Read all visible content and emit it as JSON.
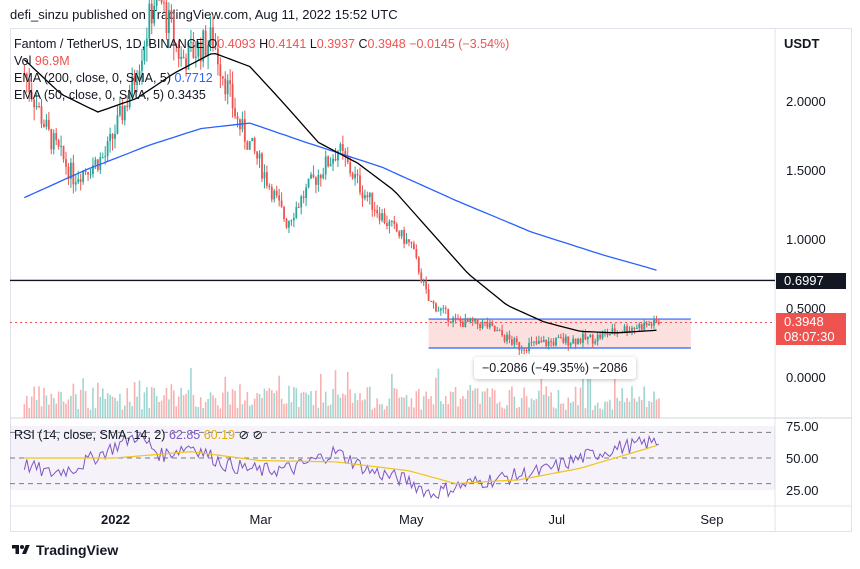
{
  "header": {
    "publisher": "defi_sinzu published on TradingView.com, Aug 11, 2022 15:52 UTC"
  },
  "legend": {
    "symbol": "Fantom / TetherUS, 1D, BINANCE",
    "o_label": "O",
    "o_value": "0.4093",
    "h_label": "H",
    "h_value": "0.4141",
    "l_label": "L",
    "l_value": "0.3937",
    "c_label": "C",
    "c_value": "0.3948",
    "change": "−0.0145 (−3.54%)",
    "vol_label": "Vol",
    "vol_value": "96.9M",
    "ema200_label": "EMA (200, close, 0, SMA, 5)",
    "ema200_value": "0.7712",
    "ema50_label": "EMA (50, close, 0, SMA, 5)",
    "ema50_value": "0.3435"
  },
  "price_axis": {
    "currency": "USDT",
    "ticks": [
      "2.0000",
      "1.5000",
      "1.0000",
      "0.5000",
      "0.0000"
    ],
    "level_tag": "0.6997",
    "price_tag": "0.3948",
    "countdown": "08:07:30"
  },
  "time_axis": {
    "ticks": [
      "2022",
      "Mar",
      "May",
      "Jul",
      "Sep"
    ]
  },
  "measure": {
    "label": "−0.2086 (−49.35%) −2086"
  },
  "rsi": {
    "label": "RSI (14, close, SMA, 14, 2)",
    "value": "62.85",
    "sma_value": "60.19",
    "ticks": [
      "75.00",
      "50.00",
      "25.00"
    ]
  },
  "footer": {
    "brand": "TradingView"
  },
  "colors": {
    "up": "#26a69a",
    "down": "#ef5350",
    "ema200": "#2962ff",
    "ema50": "#000000",
    "rsi": "#7e57c2",
    "rsi_sma": "#f0c419",
    "box_fill": "#fbd6d6",
    "box_border": "#2962ff"
  },
  "chart_data": {
    "type": "candlestick",
    "symbol": "FTM/USDT",
    "yrange": [
      -0.25,
      2.5
    ],
    "horizontal_level": 0.6997,
    "range_box": {
      "start": "2022-05-09",
      "end": "2022-08-11",
      "top": 0.42,
      "bottom": 0.21
    },
    "ema200_points": [
      {
        "date": "2021-11-25",
        "value": 1.3
      },
      {
        "date": "2021-12-20",
        "value": 1.5
      },
      {
        "date": "2022-01-15",
        "value": 1.68
      },
      {
        "date": "2022-02-05",
        "value": 1.8
      },
      {
        "date": "2022-02-25",
        "value": 1.84
      },
      {
        "date": "2022-03-20",
        "value": 1.7
      },
      {
        "date": "2022-04-20",
        "value": 1.52
      },
      {
        "date": "2022-05-20",
        "value": 1.28
      },
      {
        "date": "2022-06-20",
        "value": 1.05
      },
      {
        "date": "2022-07-20",
        "value": 0.88
      },
      {
        "date": "2022-08-11",
        "value": 0.77
      }
    ],
    "ema50_points": [
      {
        "date": "2021-11-25",
        "value": 2.3
      },
      {
        "date": "2021-12-10",
        "value": 2.05
      },
      {
        "date": "2021-12-25",
        "value": 1.92
      },
      {
        "date": "2022-01-10",
        "value": 2.02
      },
      {
        "date": "2022-01-25",
        "value": 2.2
      },
      {
        "date": "2022-02-10",
        "value": 2.35
      },
      {
        "date": "2022-02-25",
        "value": 2.25
      },
      {
        "date": "2022-03-10",
        "value": 2.0
      },
      {
        "date": "2022-03-25",
        "value": 1.7
      },
      {
        "date": "2022-04-10",
        "value": 1.55
      },
      {
        "date": "2022-04-25",
        "value": 1.35
      },
      {
        "date": "2022-05-10",
        "value": 1.05
      },
      {
        "date": "2022-05-25",
        "value": 0.75
      },
      {
        "date": "2022-06-10",
        "value": 0.52
      },
      {
        "date": "2022-06-25",
        "value": 0.4
      },
      {
        "date": "2022-07-10",
        "value": 0.33
      },
      {
        "date": "2022-07-25",
        "value": 0.32
      },
      {
        "date": "2022-08-11",
        "value": 0.34
      }
    ],
    "price_path": [
      {
        "date": "2021-11-25",
        "value": 2.2
      },
      {
        "date": "2021-12-05",
        "value": 1.75
      },
      {
        "date": "2021-12-15",
        "value": 1.45
      },
      {
        "date": "2021-12-28",
        "value": 1.6
      },
      {
        "date": "2022-01-08",
        "value": 2.1
      },
      {
        "date": "2022-01-18",
        "value": 2.8
      },
      {
        "date": "2022-01-28",
        "value": 2.3
      },
      {
        "date": "2022-02-10",
        "value": 2.45
      },
      {
        "date": "2022-02-20",
        "value": 1.85
      },
      {
        "date": "2022-03-01",
        "value": 1.55
      },
      {
        "date": "2022-03-12",
        "value": 1.12
      },
      {
        "date": "2022-03-22",
        "value": 1.4
      },
      {
        "date": "2022-04-02",
        "value": 1.65
      },
      {
        "date": "2022-04-12",
        "value": 1.35
      },
      {
        "date": "2022-04-22",
        "value": 1.12
      },
      {
        "date": "2022-05-02",
        "value": 0.95
      },
      {
        "date": "2022-05-09",
        "value": 0.55
      },
      {
        "date": "2022-05-20",
        "value": 0.4
      },
      {
        "date": "2022-06-01",
        "value": 0.38
      },
      {
        "date": "2022-06-15",
        "value": 0.22
      },
      {
        "date": "2022-07-01",
        "value": 0.26
      },
      {
        "date": "2022-07-15",
        "value": 0.28
      },
      {
        "date": "2022-07-28",
        "value": 0.35
      },
      {
        "date": "2022-08-11",
        "value": 0.3948
      }
    ],
    "rsi_path": [
      {
        "date": "2021-11-25",
        "value": 45
      },
      {
        "date": "2021-12-05",
        "value": 38
      },
      {
        "date": "2021-12-15",
        "value": 42
      },
      {
        "date": "2021-12-28",
        "value": 55
      },
      {
        "date": "2022-01-10",
        "value": 68
      },
      {
        "date": "2022-01-20",
        "value": 52
      },
      {
        "date": "2022-02-01",
        "value": 60
      },
      {
        "date": "2022-02-15",
        "value": 45
      },
      {
        "date": "2022-03-01",
        "value": 40
      },
      {
        "date": "2022-03-15",
        "value": 42
      },
      {
        "date": "2022-04-01",
        "value": 55
      },
      {
        "date": "2022-04-15",
        "value": 40
      },
      {
        "date": "2022-05-01",
        "value": 32
      },
      {
        "date": "2022-05-10",
        "value": 22
      },
      {
        "date": "2022-05-25",
        "value": 30
      },
      {
        "date": "2022-06-10",
        "value": 35
      },
      {
        "date": "2022-06-25",
        "value": 40
      },
      {
        "date": "2022-07-10",
        "value": 50
      },
      {
        "date": "2022-07-25",
        "value": 58
      },
      {
        "date": "2022-08-11",
        "value": 62.85
      }
    ],
    "rsi_sma_path": [
      {
        "date": "2021-11-25",
        "value": 50
      },
      {
        "date": "2022-01-01",
        "value": 50
      },
      {
        "date": "2022-02-01",
        "value": 55
      },
      {
        "date": "2022-03-01",
        "value": 48
      },
      {
        "date": "2022-04-01",
        "value": 47
      },
      {
        "date": "2022-05-01",
        "value": 40
      },
      {
        "date": "2022-05-20",
        "value": 30
      },
      {
        "date": "2022-06-15",
        "value": 33
      },
      {
        "date": "2022-07-10",
        "value": 42
      },
      {
        "date": "2022-08-11",
        "value": 60.19
      }
    ],
    "rsi_levels": [
      70,
      50,
      30
    ]
  }
}
